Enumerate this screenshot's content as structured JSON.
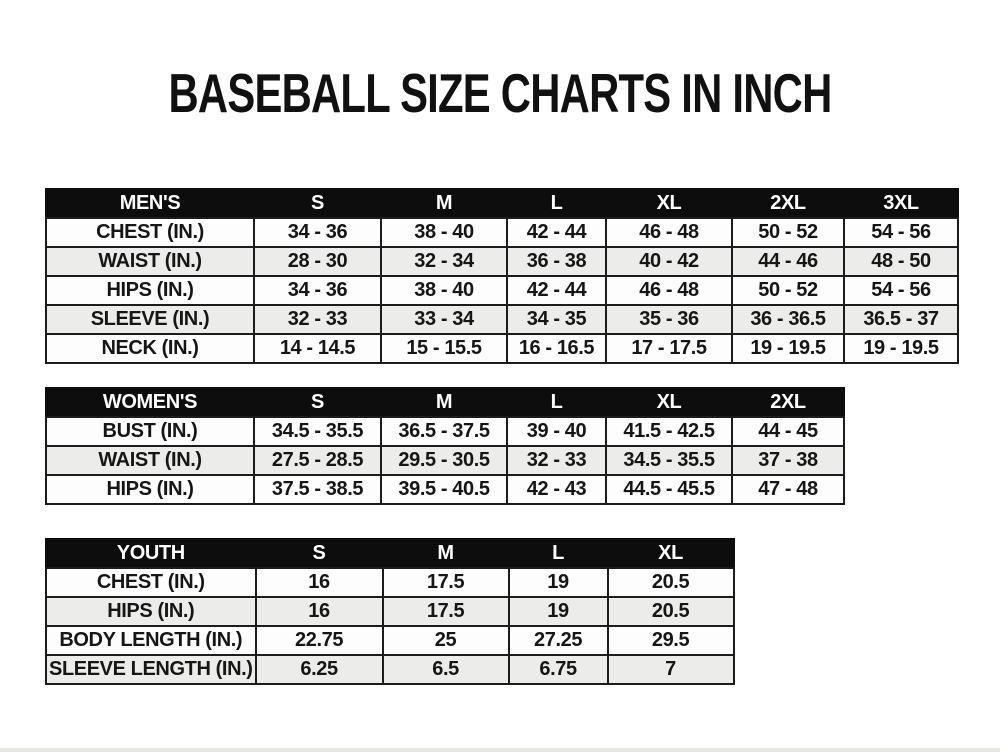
{
  "page": {
    "title": "BASEBALL SIZE CHARTS IN INCH"
  },
  "colors": {
    "header_bg": "#0d0d0d",
    "header_text": "#ffffff",
    "row_odd_bg": "#fdfdfd",
    "row_even_bg": "#ececea",
    "border": "#1c1c1c",
    "text": "#161616",
    "page_bg": "#ffffff"
  },
  "chart_data": [
    {
      "type": "table",
      "name": "mens-size-chart",
      "title": "MEN'S",
      "header": [
        "MEN'S",
        "S",
        "M",
        "L",
        "XL",
        "2XL",
        "3XL"
      ],
      "rows": [
        [
          "CHEST (IN.)",
          "34 - 36",
          "38 - 40",
          "42 - 44",
          "46 - 48",
          "50 - 52",
          "54 - 56"
        ],
        [
          "WAIST (IN.)",
          "28 - 30",
          "32 - 34",
          "36 - 38",
          "40 - 42",
          "44 - 46",
          "48 - 50"
        ],
        [
          "HIPS (IN.)",
          "34 - 36",
          "38 - 40",
          "42 - 44",
          "46 - 48",
          "50 - 52",
          "54 - 56"
        ],
        [
          "SLEEVE (IN.)",
          "32 - 33",
          "33 - 34",
          "34 - 35",
          "35 - 36",
          "36 - 36.5",
          "36.5 - 37"
        ],
        [
          "NECK (IN.)",
          "14 - 14.5",
          "15 - 15.5",
          "16 - 16.5",
          "17 - 17.5",
          "19 - 19.5",
          "19 - 19.5"
        ]
      ]
    },
    {
      "type": "table",
      "name": "womens-size-chart",
      "title": "WOMEN'S",
      "header": [
        "WOMEN'S",
        "S",
        "M",
        "L",
        "XL",
        "2XL"
      ],
      "rows": [
        [
          "BUST (IN.)",
          "34.5 - 35.5",
          "36.5 - 37.5",
          "39 - 40",
          "41.5 - 42.5",
          "44 - 45"
        ],
        [
          "WAIST (IN.)",
          "27.5 - 28.5",
          "29.5 - 30.5",
          "32 - 33",
          "34.5 - 35.5",
          "37 - 38"
        ],
        [
          "HIPS (IN.)",
          "37.5 - 38.5",
          "39.5 - 40.5",
          "42 - 43",
          "44.5 - 45.5",
          "47 - 48"
        ]
      ]
    },
    {
      "type": "table",
      "name": "youth-size-chart",
      "title": "YOUTH",
      "header": [
        "YOUTH",
        "S",
        "M",
        "L",
        "XL"
      ],
      "rows": [
        [
          "CHEST (IN.)",
          "16",
          "17.5",
          "19",
          "20.5"
        ],
        [
          "HIPS (IN.)",
          "16",
          "17.5",
          "19",
          "20.5"
        ],
        [
          "BODY LENGTH (IN.)",
          "22.75",
          "25",
          "27.25",
          "29.5"
        ],
        [
          "SLEEVE LENGTH (IN.)",
          "6.25",
          "6.5",
          "6.75",
          "7"
        ]
      ]
    }
  ]
}
